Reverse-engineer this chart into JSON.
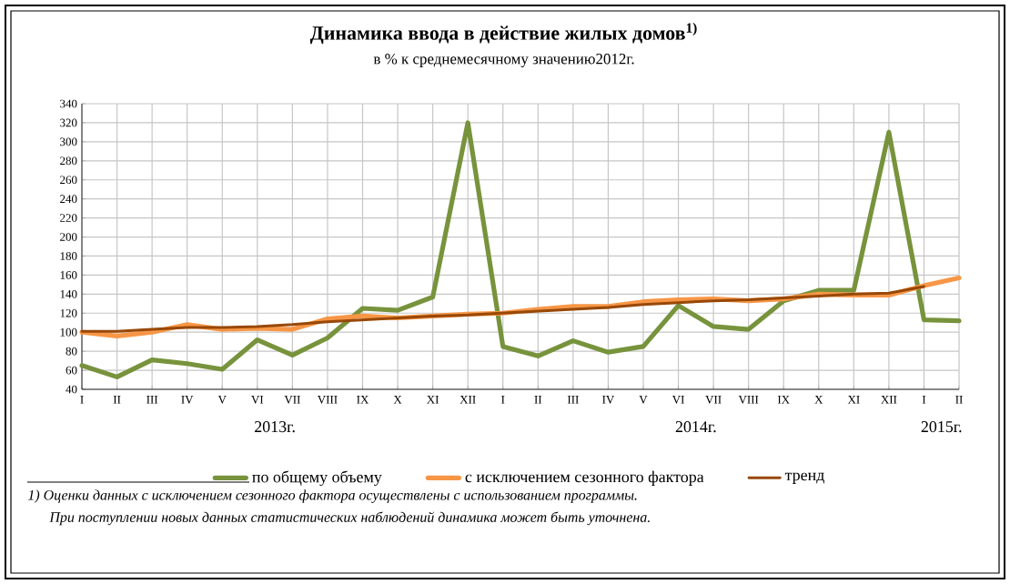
{
  "chart_data": {
    "type": "line",
    "title": "Динамика ввода в действие жилых домов$^{1)}$",
    "subtitle": "в % к среднемесячному значению2012г.",
    "categories": [
      "I",
      "II",
      "III",
      "IV",
      "V",
      "VI",
      "VII",
      "VIII",
      "IX",
      "X",
      "XI",
      "XII",
      "I",
      "II",
      "III",
      "IV",
      "V",
      "VI",
      "VII",
      "VIII",
      "IX",
      "X",
      "XI",
      "XII",
      "I",
      "II"
    ],
    "series": [
      {
        "name": "по общему объему",
        "color": "#77933c",
        "values": [
          65,
          53,
          71,
          67,
          61,
          92,
          76,
          94,
          125,
          123,
          137,
          320,
          85,
          75,
          91,
          79,
          85,
          128,
          106,
          103,
          133,
          144,
          144,
          310,
          113,
          112
        ]
      },
      {
        "name": "с исключением  сезонного фактора",
        "color": "#f79646",
        "values": [
          100,
          96,
          100,
          108,
          103,
          104,
          103,
          114,
          117,
          115,
          117,
          119,
          120,
          124,
          127,
          127,
          132,
          134,
          135,
          133,
          135,
          140,
          139,
          139,
          149,
          157
        ]
      },
      {
        "name": "тренд",
        "color": "#984807",
        "values": [
          101,
          101,
          103,
          105,
          105,
          106,
          108,
          111,
          113,
          115,
          117,
          118,
          120,
          122,
          124,
          126,
          129,
          131,
          133,
          134,
          136,
          138,
          140,
          141,
          148,
          null
        ]
      }
    ],
    "ylim": [
      40,
      340
    ],
    "yticks": [
      40,
      60,
      80,
      100,
      120,
      140,
      160,
      180,
      200,
      220,
      240,
      260,
      280,
      300,
      320,
      340
    ],
    "grid": true,
    "legend": "bottom",
    "marker": "none",
    "line_style": "solid",
    "annotations": [
      "2013г.",
      "2014г.",
      "2015г.",
      "1) Оценки данных с исключением сезонного фактора осуществлены с использованием программы.",
      "При поступлении новых данных статистических наблюдений динамика может быть уточнена."
    ]
  }
}
